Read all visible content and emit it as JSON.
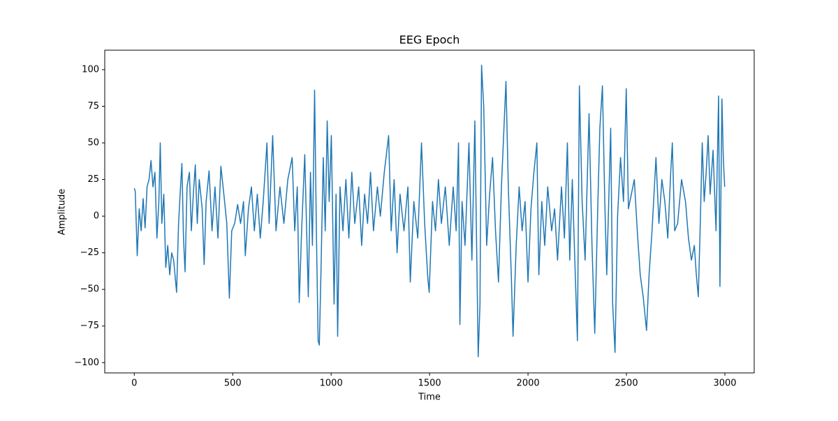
{
  "chart_data": {
    "type": "line",
    "title": "EEG Epoch",
    "x_label": "Time",
    "y_label": "Amplitude",
    "x": [
      0,
      5,
      15,
      25,
      35,
      45,
      55,
      65,
      75,
      85,
      95,
      105,
      115,
      125,
      132,
      140,
      150,
      160,
      170,
      180,
      190,
      200,
      215,
      225,
      235,
      242,
      250,
      258,
      268,
      280,
      290,
      300,
      310,
      320,
      330,
      345,
      355,
      365,
      380,
      395,
      410,
      425,
      440,
      455,
      470,
      483,
      495,
      510,
      525,
      540,
      555,
      564,
      580,
      595,
      610,
      625,
      640,
      655,
      674,
      685,
      703,
      720,
      740,
      760,
      780,
      802,
      815,
      828,
      838,
      850,
      866,
      884,
      895,
      905,
      916,
      925,
      934,
      940,
      948,
      960,
      970,
      980,
      990,
      1001,
      1015,
      1025,
      1033,
      1045,
      1060,
      1075,
      1090,
      1105,
      1120,
      1140,
      1155,
      1170,
      1185,
      1200,
      1215,
      1235,
      1250,
      1270,
      1292,
      1305,
      1320,
      1335,
      1350,
      1370,
      1390,
      1402,
      1420,
      1440,
      1459,
      1475,
      1491,
      1498,
      1515,
      1530,
      1545,
      1560,
      1580,
      1600,
      1620,
      1635,
      1647,
      1654,
      1665,
      1680,
      1700,
      1715,
      1730,
      1747,
      1756,
      1764,
      1775,
      1790,
      1805,
      1820,
      1835,
      1850,
      1865,
      1888,
      1900,
      1915,
      1924,
      1940,
      1955,
      1970,
      1985,
      2000,
      2015,
      2030,
      2045,
      2055,
      2070,
      2085,
      2100,
      2120,
      2135,
      2150,
      2170,
      2185,
      2200,
      2212,
      2225,
      2240,
      2251,
      2261,
      2275,
      2290,
      2310,
      2325,
      2339,
      2355,
      2365,
      2378,
      2390,
      2400,
      2420,
      2430,
      2442,
      2455,
      2470,
      2485,
      2499,
      2510,
      2525,
      2540,
      2555,
      2570,
      2585,
      2602,
      2615,
      2630,
      2650,
      2665,
      2680,
      2695,
      2710,
      2725,
      2733,
      2745,
      2760,
      2780,
      2800,
      2815,
      2830,
      2845,
      2855,
      2865,
      2875,
      2885,
      2895,
      2905,
      2915,
      2925,
      2940,
      2955,
      2968,
      2975,
      2985,
      2992,
      2999
    ],
    "series": [
      {
        "color": "#1f77b4",
        "values": [
          19,
          17,
          -27,
          5,
          -10,
          12,
          -8,
          20,
          25,
          38,
          20,
          30,
          -15,
          10,
          50,
          -5,
          15,
          -35,
          -20,
          -40,
          -25,
          -30,
          -52,
          -5,
          20,
          36,
          -15,
          -38,
          20,
          30,
          -10,
          15,
          35,
          -5,
          25,
          5,
          -33,
          10,
          31,
          -10,
          20,
          -15,
          34,
          15,
          -5,
          -56,
          -10,
          -5,
          8,
          -5,
          10,
          -27,
          5,
          20,
          -10,
          15,
          -15,
          10,
          50,
          -5,
          55,
          -10,
          20,
          -5,
          25,
          40,
          -10,
          20,
          -59,
          -10,
          42,
          -55,
          30,
          -20,
          86,
          -10,
          -85,
          -88,
          -40,
          40,
          -10,
          65,
          10,
          55,
          -60,
          15,
          -82,
          20,
          -10,
          25,
          -15,
          30,
          -5,
          20,
          -20,
          15,
          -5,
          30,
          -10,
          20,
          0,
          30,
          55,
          -10,
          25,
          -25,
          15,
          -10,
          20,
          -45,
          10,
          -15,
          50,
          -5,
          -42,
          -52,
          10,
          -10,
          25,
          -5,
          20,
          -20,
          20,
          -10,
          50,
          -74,
          10,
          -20,
          50,
          -30,
          65,
          -96,
          -60,
          103,
          75,
          -20,
          15,
          40,
          -10,
          -45,
          20,
          92,
          20,
          -40,
          -82,
          -20,
          20,
          -10,
          10,
          -45,
          5,
          30,
          50,
          -40,
          10,
          -20,
          20,
          -10,
          5,
          -30,
          20,
          -15,
          50,
          -30,
          25,
          -40,
          -85,
          89,
          10,
          -30,
          70,
          -20,
          -80,
          10,
          60,
          89,
          10,
          -40,
          60,
          -60,
          -93,
          0,
          40,
          10,
          87,
          5,
          15,
          25,
          -10,
          -40,
          -55,
          -78,
          -40,
          -10,
          40,
          -5,
          25,
          10,
          -15,
          30,
          50,
          -10,
          -5,
          25,
          10,
          -15,
          -30,
          -20,
          -40,
          -55,
          -5,
          50,
          10,
          30,
          55,
          15,
          45,
          -10,
          82,
          -48,
          80,
          40,
          20
        ]
      }
    ],
    "xlim": [
      -149.95,
      3148.95
    ],
    "ylim": [
      -107.0,
      113.3
    ],
    "xticks": [
      0,
      500,
      1000,
      1500,
      2000,
      2500,
      3000
    ],
    "yticks": [
      {
        "value": -100,
        "label": "−100"
      },
      {
        "value": -75,
        "label": "−75"
      },
      {
        "value": -50,
        "label": "−50"
      },
      {
        "value": -25,
        "label": "−25"
      },
      0,
      25,
      50,
      75,
      100
    ]
  }
}
